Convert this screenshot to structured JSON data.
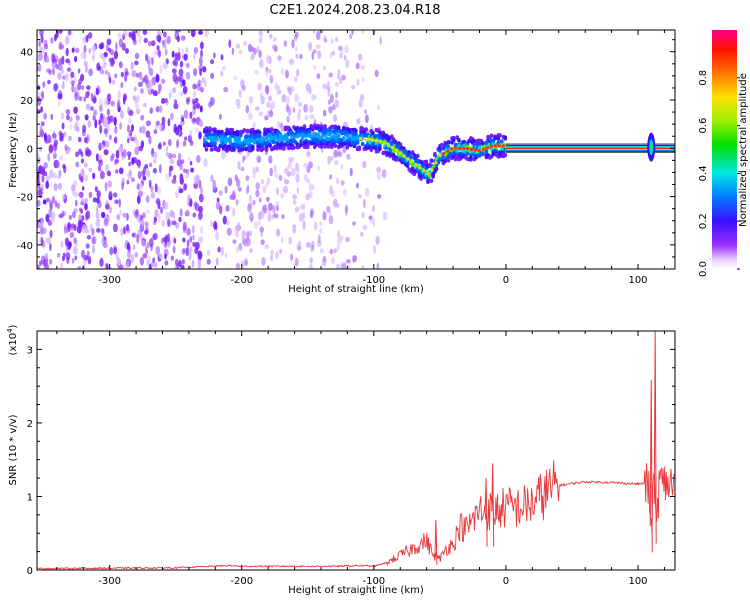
{
  "title": "C2E1.2024.208.23.04.R18",
  "chart_data": [
    {
      "type": "heatmap",
      "xlabel": "Height of straight line (km)",
      "ylabel": "Frequency (Hz)",
      "xlim": [
        -355,
        128
      ],
      "ylim": [
        -50,
        49
      ],
      "xticks": [
        -300,
        -200,
        -100,
        0,
        100
      ],
      "yticks": [
        -40,
        -20,
        0,
        20,
        40
      ],
      "colorbar": {
        "label": "Normalized spectral amplitude",
        "ticks": [
          "0.0",
          "0.2",
          "0.4",
          "0.6",
          "0.8"
        ],
        "range": [
          0,
          1
        ]
      },
      "spectral_ridge": {
        "height_km": [
          -225,
          -200,
          -175,
          -150,
          -125,
          -110,
          -95,
          -85,
          -75,
          -65,
          -58,
          -50,
          -40,
          -30,
          -20,
          -10,
          0,
          20,
          60,
          100,
          128
        ],
        "frequency_hz": [
          4,
          3,
          4,
          5,
          5,
          4,
          3,
          0,
          -4,
          -8,
          -11,
          -3,
          0,
          0,
          -1,
          1,
          1,
          0,
          0,
          0,
          0
        ]
      },
      "spike": {
        "height_km": 110,
        "frequency_hz": [
          7,
          -5
        ]
      }
    },
    {
      "type": "line",
      "xlabel": "Height of straight line (km)",
      "ylabel": "SNR (10 * v/v)",
      "multiplier_label": "(x10",
      "multiplier_exponent": "4",
      "xlim": [
        -355,
        128
      ],
      "ylim": [
        0,
        3.25
      ],
      "xticks": [
        -300,
        -200,
        -100,
        0,
        100
      ],
      "yticks": [
        0,
        1,
        2,
        3
      ],
      "series": [
        {
          "color": "#e8383a",
          "envelope_x": [
            -355,
            -250,
            -210,
            -200,
            -130,
            -110,
            -100,
            -90,
            -80,
            -70,
            -60,
            -55,
            -50,
            -45,
            -40,
            -35,
            -30,
            -20,
            -10,
            0,
            10,
            20,
            30,
            40,
            60,
            80,
            100,
            106,
            108,
            110,
            112,
            114,
            116,
            128
          ],
          "envelope_y": [
            0.02,
            0.03,
            0.06,
            0.05,
            0.05,
            0.06,
            0.05,
            0.1,
            0.2,
            0.3,
            0.4,
            0.2,
            0.15,
            0.3,
            0.35,
            0.6,
            0.55,
            0.8,
            0.8,
            0.85,
            0.85,
            0.9,
            1.05,
            1.15,
            1.2,
            1.19,
            1.17,
            1.18,
            1.1,
            0.6,
            1.2,
            0.6,
            1.18,
            1.17
          ]
        }
      ],
      "spikes": [
        {
          "x": 110,
          "y": 2.58
        },
        {
          "x": 113,
          "y": 3.25
        },
        {
          "x": -10,
          "y": 1.45
        },
        {
          "x": -15,
          "y": 1.25
        },
        {
          "x": -53,
          "y": 0.68
        }
      ]
    }
  ]
}
